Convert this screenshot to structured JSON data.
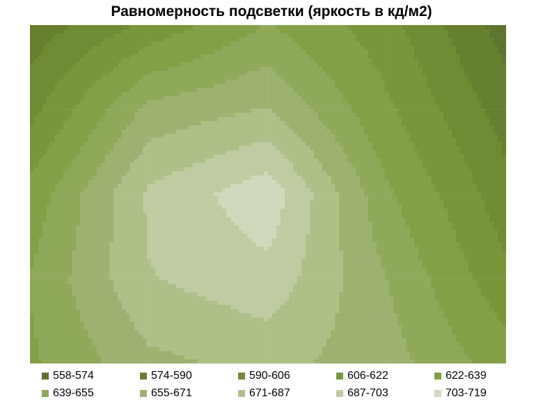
{
  "chart_data": {
    "type": "heatmap",
    "title": "Равномерность подсветки (яркость в кд/м2)",
    "unit": "кд/м2",
    "grid_rows": 5,
    "grid_cols": 5,
    "values": [
      [
        580,
        610,
        640,
        612,
        566
      ],
      [
        600,
        660,
        672,
        625,
        582
      ],
      [
        628,
        690,
        714,
        642,
        596
      ],
      [
        640,
        686,
        698,
        655,
        610
      ],
      [
        636,
        667,
        676,
        662,
        630
      ]
    ],
    "legend": [
      {
        "label": "558-574",
        "color": "#5d752e"
      },
      {
        "label": "574-590",
        "color": "#66802f"
      },
      {
        "label": "590-606",
        "color": "#6f8b34"
      },
      {
        "label": "606-622",
        "color": "#79963b"
      },
      {
        "label": "622-639",
        "color": "#83a046"
      },
      {
        "label": "639-655",
        "color": "#8fa85a"
      },
      {
        "label": "655-671",
        "color": "#9db270"
      },
      {
        "label": "671-687",
        "color": "#aebf88"
      },
      {
        "label": "687-703",
        "color": "#bfcca2"
      },
      {
        "label": "703-719",
        "color": "#cfd9bd"
      }
    ],
    "levels": [
      558,
      574,
      590,
      606,
      622,
      639,
      655,
      671,
      687,
      703,
      719
    ],
    "legend_placement": "bottom"
  }
}
